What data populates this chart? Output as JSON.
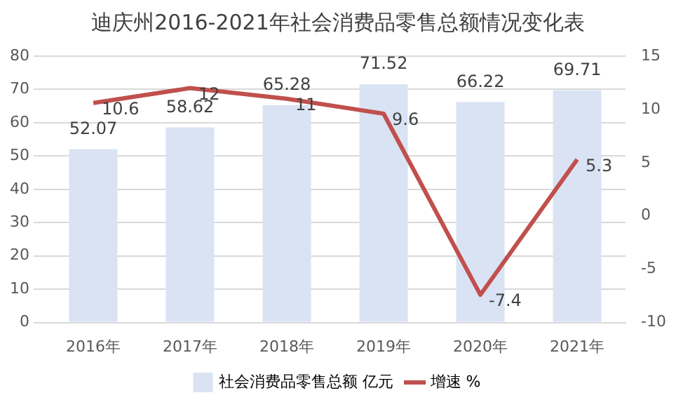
{
  "chart_data": {
    "type": "bar",
    "title": "迪庆州2016-2021年社会消费品零售总额情况变化表",
    "categories": [
      "2016年",
      "2017年",
      "2018年",
      "2019年",
      "2020年",
      "2021年"
    ],
    "series": [
      {
        "name": "社会消费品零售总额 亿元",
        "color": "#dae3f3",
        "values": [
          52.07,
          58.62,
          65.28,
          71.52,
          66.22,
          69.71
        ]
      },
      {
        "name": "增速 %",
        "type": "line",
        "axis": "y2",
        "color": "#c0504d",
        "values": [
          10.6,
          12,
          11,
          9.6,
          -7.4,
          5.3
        ]
      }
    ],
    "ylim": [
      0,
      80
    ],
    "yticks": [
      0,
      10,
      20,
      30,
      40,
      50,
      60,
      70,
      80
    ],
    "y2lim": [
      -10,
      15
    ],
    "y2ticks": [
      -10,
      -5,
      0,
      5,
      10,
      15
    ],
    "grid": "y",
    "legend": "bottom",
    "data_labels": true,
    "marker": "none",
    "line_style": "solid"
  }
}
